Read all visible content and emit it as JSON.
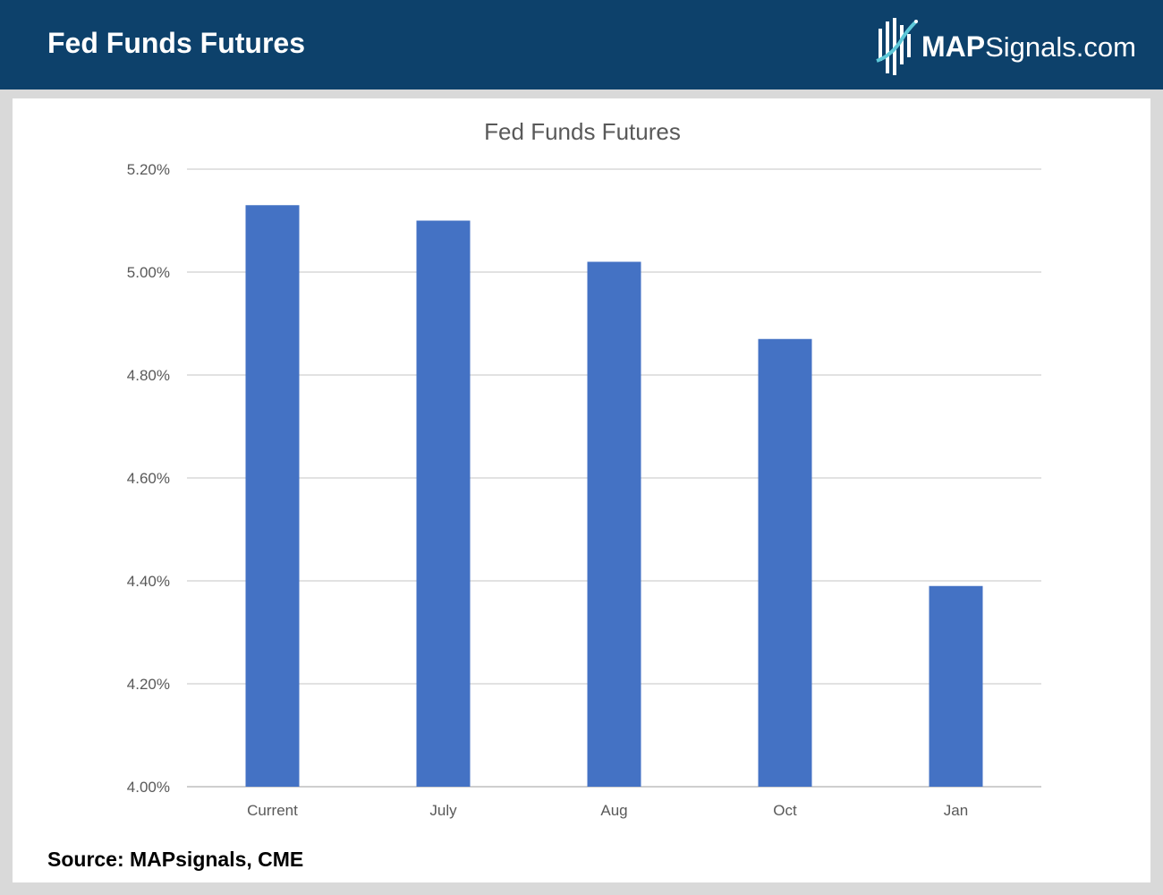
{
  "header": {
    "title": "Fed Funds Futures",
    "brand_bold": "MAP",
    "brand_rest": "Signals.com",
    "logo_icon": "mapsignals-logo-icon",
    "background_color": "#0d416b"
  },
  "footer": {
    "source": "Source: MAPsignals, CME"
  },
  "chart_data": {
    "type": "bar",
    "title": "Fed Funds Futures",
    "xlabel": "",
    "ylabel": "",
    "categories": [
      "Current",
      "July",
      "Aug",
      "Oct",
      "Jan"
    ],
    "values": [
      5.13,
      5.1,
      5.02,
      4.87,
      4.39
    ],
    "ylim": [
      4.0,
      5.2
    ],
    "yticks": [
      4.0,
      4.2,
      4.4,
      4.6,
      4.8,
      5.0,
      5.2
    ],
    "ytick_labels": [
      "4.00%",
      "4.20%",
      "4.40%",
      "4.60%",
      "4.80%",
      "5.00%",
      "5.20%"
    ],
    "bar_color": "#4472c4",
    "grid": true,
    "legend": "none"
  }
}
